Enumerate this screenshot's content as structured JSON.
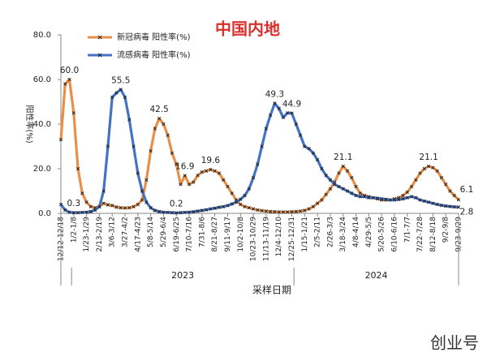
{
  "chart_data": {
    "type": "line",
    "title": "中国内地",
    "x_label": "采样日期",
    "y_label": "阳性率(%)",
    "years": [
      "2023",
      "2024"
    ],
    "watermark": "创业号",
    "categories": [
      "12/12-12/18",
      null,
      null,
      "1/2-1/8",
      null,
      null,
      "1/23-1/29",
      null,
      null,
      "2/13-2/19",
      null,
      null,
      "3/6-3/12",
      null,
      null,
      "3/27-4/2",
      null,
      null,
      "4/17-4/23",
      null,
      null,
      "5/8-5/14",
      null,
      null,
      "5/29-6/4",
      null,
      null,
      "6/19-6/25",
      null,
      null,
      "7/10-7/16",
      null,
      null,
      "7/31-8/6",
      null,
      null,
      "8/21-8/27",
      null,
      null,
      "9/11-9/17",
      null,
      null,
      "10/2-10/8",
      null,
      null,
      "10/23-10/29",
      null,
      null,
      "11/13-11/19",
      null,
      null,
      "12/4-12/10",
      null,
      null,
      "12/25-12/31",
      null,
      null,
      "1/15-1/21",
      null,
      null,
      "2/5-2/11",
      null,
      null,
      "2/26-3/3",
      null,
      null,
      "3/18-3/24",
      null,
      null,
      "4/8-4/14",
      null,
      null,
      "4/29-5/5",
      null,
      null,
      "5/20-5/26",
      null,
      null,
      "6/10-6/16",
      null,
      null,
      "7/1-7/7",
      null,
      null,
      "7/22-7/28",
      null,
      null,
      "8/12-8/18",
      null,
      null,
      "9/2-9/8",
      null,
      null,
      "9/23-9/29"
    ],
    "ylim": [
      0,
      80
    ],
    "yticks": [
      {
        "value": 0,
        "label": "0.0"
      },
      {
        "value": 20,
        "label": "20.0"
      },
      {
        "value": 40,
        "label": "40.0"
      },
      {
        "value": 60,
        "label": "60.0"
      },
      {
        "value": 80,
        "label": "80.0"
      }
    ],
    "legend": "top-left",
    "series": [
      {
        "name": "新冠病毒 阳性率(%)",
        "color": "#e8904a",
        "values": [
          33,
          58,
          60,
          45,
          20,
          9,
          5,
          3,
          2.5,
          3,
          4.5,
          3.8,
          3.5,
          2.8,
          2.5,
          2.4,
          2.5,
          3,
          4,
          6,
          15,
          28,
          38,
          42.5,
          40,
          35,
          27,
          22,
          13,
          16.9,
          13,
          14,
          17,
          18.5,
          19,
          19.6,
          19,
          18,
          15,
          12,
          9,
          6,
          4,
          3,
          2.5,
          2,
          1.5,
          1.2,
          1,
          0.8,
          0.7,
          0.6,
          0.6,
          0.6,
          0.7,
          0.8,
          1,
          1.3,
          2,
          3,
          4.5,
          6,
          8.5,
          11,
          14,
          18,
          21.1,
          19,
          16,
          12,
          9,
          8,
          7.5,
          7,
          6.5,
          6,
          6,
          6,
          6.5,
          7,
          8,
          9.5,
          12,
          15,
          18,
          20,
          21.1,
          20.5,
          19,
          16,
          13,
          10,
          8,
          6.1
        ],
        "value_labels": [
          null,
          null,
          "60.0",
          null,
          null,
          null,
          null,
          null,
          null,
          null,
          null,
          null,
          null,
          null,
          null,
          null,
          null,
          null,
          null,
          null,
          null,
          null,
          null,
          "42.5",
          null,
          null,
          null,
          null,
          null,
          "16.9",
          null,
          null,
          null,
          null,
          null,
          "19.6",
          null,
          null,
          null,
          null,
          null,
          null,
          null,
          null,
          null,
          null,
          null,
          null,
          null,
          null,
          null,
          null,
          null,
          null,
          null,
          null,
          null,
          null,
          null,
          null,
          null,
          null,
          null,
          null,
          null,
          null,
          "21.1",
          null,
          null,
          null,
          null,
          null,
          null,
          null,
          null,
          null,
          null,
          null,
          null,
          null,
          null,
          null,
          null,
          null,
          null,
          null,
          "21.1",
          null,
          null,
          null,
          null,
          null,
          null,
          "6.1"
        ]
      },
      {
        "name": "流感病毒 阳性率(%)",
        "color": "#4472c4",
        "values": [
          4,
          1.5,
          0.5,
          0.3,
          0.3,
          0.4,
          0.5,
          0.8,
          1.5,
          3,
          10,
          30,
          52,
          54,
          55.5,
          52,
          42,
          30,
          18,
          10,
          5,
          2.5,
          1.3,
          0.8,
          0.5,
          0.4,
          0.3,
          0.2,
          0.3,
          0.4,
          0.5,
          0.7,
          1,
          1.3,
          1.6,
          2,
          2.3,
          2.7,
          3,
          3.5,
          4.2,
          5,
          6.3,
          8,
          11,
          16,
          22,
          30,
          38,
          44,
          49.3,
          47,
          43,
          45,
          44.9,
          40,
          35,
          30,
          29,
          27,
          24,
          20,
          17,
          15,
          13,
          12,
          11,
          10,
          9,
          8,
          7.5,
          7.5,
          7,
          7,
          6.8,
          6.5,
          6.3,
          6,
          6,
          6.2,
          6.5,
          7,
          7.5,
          7,
          6,
          5.5,
          5,
          4.5,
          4,
          3.6,
          3.3,
          3.1,
          2.9,
          2.8
        ],
        "value_labels": [
          null,
          null,
          null,
          "0.3",
          null,
          null,
          null,
          null,
          null,
          null,
          null,
          null,
          null,
          null,
          "55.5",
          null,
          null,
          null,
          null,
          null,
          null,
          null,
          null,
          null,
          null,
          null,
          null,
          "0.2",
          null,
          null,
          null,
          null,
          null,
          null,
          null,
          null,
          null,
          null,
          null,
          null,
          null,
          null,
          null,
          null,
          null,
          null,
          null,
          null,
          null,
          null,
          "49.3",
          null,
          null,
          null,
          "44.9",
          null,
          null,
          null,
          null,
          null,
          null,
          null,
          null,
          null,
          null,
          null,
          null,
          null,
          null,
          null,
          null,
          null,
          null,
          null,
          null,
          null,
          null,
          null,
          null,
          null,
          null,
          null,
          null,
          null,
          null,
          null,
          null,
          null,
          null,
          null,
          null,
          null,
          null,
          "2.8"
        ]
      }
    ]
  }
}
